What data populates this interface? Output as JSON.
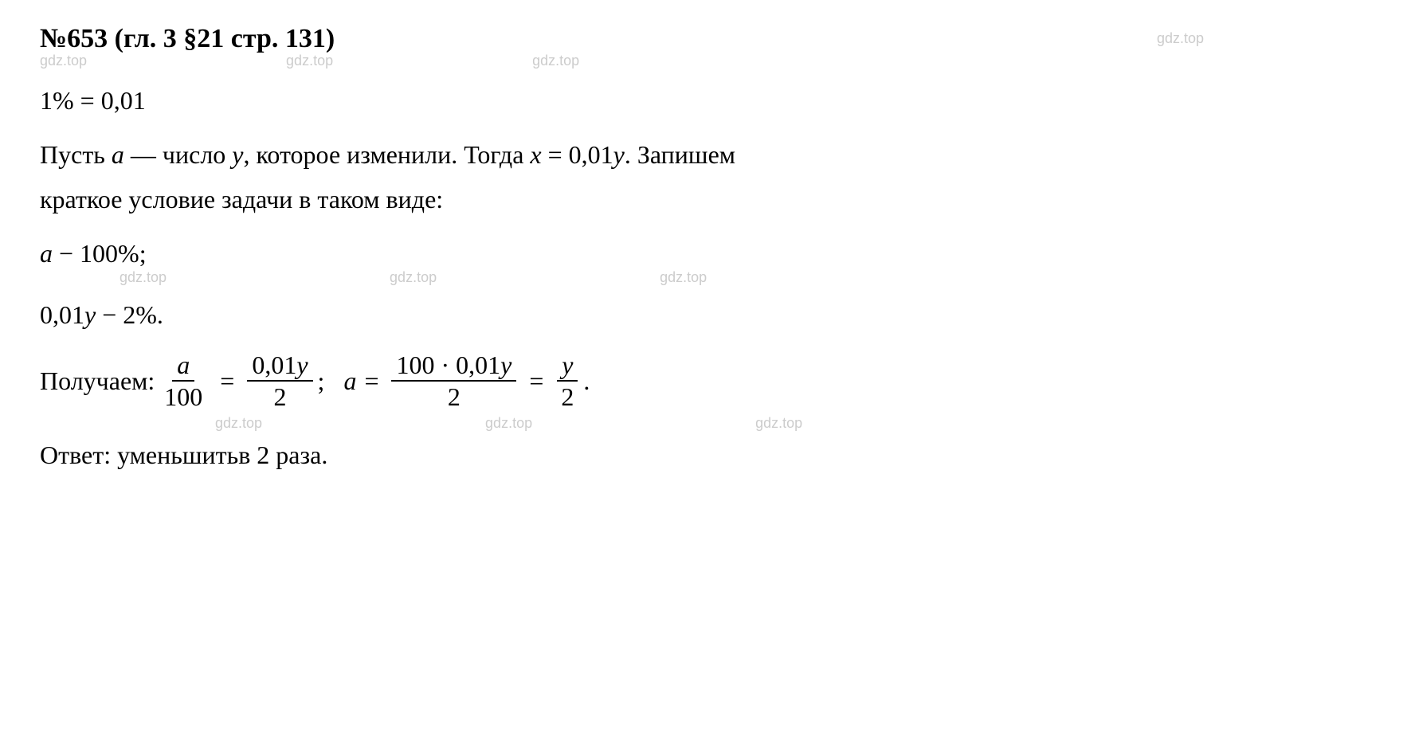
{
  "header": {
    "problem_num": "№653",
    "location": "(гл. 3 §21 стр. 131)"
  },
  "watermark": "gdz.top",
  "lines": {
    "percent_conv": "1% = 0,01",
    "intro_part1": "Пусть ",
    "intro_var_a": "a",
    "intro_part2": " — число ",
    "intro_var_y": "y",
    "intro_part3": ", которое изменили. Тогда ",
    "intro_var_x": "x",
    "intro_part4": " = 0,01",
    "intro_var_y2": "y",
    "intro_part5": ". Запишем",
    "intro_line2": "краткое условие задачи в таком виде:",
    "cond1_var": "a",
    "cond1_text": " − 100%;",
    "cond2_num": "0,01",
    "cond2_var": "y",
    "cond2_text": " − 2%.",
    "result_label": "Получаем:  ",
    "frac1_num": "a",
    "frac1_den": "100",
    "frac2_num_a": "0,01",
    "frac2_num_b": "y",
    "frac2_den": "2",
    "mid_var": "a",
    "frac3_num_a": "100 · 0,01",
    "frac3_num_b": "y",
    "frac3_den": "2",
    "frac4_num": "y",
    "frac4_den": "2",
    "answer_label": "Ответ: ",
    "answer_text": "уменьшитьв 2 раза."
  },
  "colors": {
    "text": "#000000",
    "watermark": "#cccccc",
    "background": "#ffffff"
  },
  "typography": {
    "title_fontsize": 34,
    "body_fontsize": 32,
    "watermark_fontsize": 18,
    "font_family": "Times New Roman"
  }
}
